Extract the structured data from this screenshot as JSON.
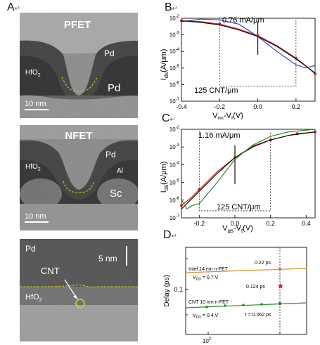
{
  "panels": {
    "a": {
      "label": "A",
      "ret": "↵"
    },
    "b": {
      "label": "B",
      "ret": "↵"
    },
    "c": {
      "label": "C",
      "ret": "↵"
    },
    "d": {
      "label": "D",
      "ret": "↵"
    }
  },
  "micrographs": {
    "pfet": {
      "title": "PFET",
      "pd_top": "Pd",
      "pd_bottom": "Pd",
      "hfo2": "HfO",
      "hfo2_sub": "2",
      "scale": "10 nm"
    },
    "nfet": {
      "title": "NFET",
      "pd": "Pd",
      "hfo2": "HfO",
      "hfo2_sub": "2",
      "al": "Al",
      "sc": "Sc",
      "scale": "10 nm"
    },
    "cnt": {
      "pd": "Pd",
      "cnt": "CNT",
      "hfo2": "HfO",
      "hfo2_sub": "2",
      "scale": "5 nm"
    }
  },
  "colors": {
    "red": "#c8201e",
    "blue": "#3040d0",
    "black": "#111111",
    "green": "#2a8a2a",
    "orange": "#e0902a",
    "star": "#e02020"
  },
  "chart_data": [
    {
      "type": "line",
      "panel": "B",
      "xlabel": "V",
      "xlabel_sub1": "gs",
      "xlabel_mid": "-V",
      "xlabel_sub2": "t",
      "xlabel_unit": "(V)",
      "ylabel": "I",
      "ylabel_sub": "ds",
      "ylabel_unit": "(A/μm)",
      "xlim": [
        -0.4,
        0.3
      ],
      "ylog": true,
      "ylim_exp": [
        -7,
        -2
      ],
      "xticks": [
        "-0.4",
        "-0.2",
        "0.0",
        "0.2"
      ],
      "yticks_exp": [
        "-7",
        "-6",
        "-5",
        "-4",
        "-3",
        "-2"
      ],
      "annotations": [
        "0.76 mA/μm",
        "125 CNT/μm"
      ],
      "series": [
        {
          "color": "red",
          "marker": true,
          "x": [
            -0.4,
            -0.3,
            -0.2,
            -0.1,
            0.0,
            0.1,
            0.2,
            0.25,
            0.3
          ],
          "logy": [
            -2.15,
            -2.2,
            -2.35,
            -2.65,
            -3.05,
            -3.65,
            -4.4,
            -4.85,
            -5.35
          ]
        },
        {
          "color": "blue",
          "marker": false,
          "x": [
            -0.4,
            -0.3,
            -0.2,
            -0.1,
            0.0,
            0.1,
            0.15,
            0.2,
            0.25,
            0.3
          ],
          "logy": [
            -2.2,
            -2.05,
            -2.1,
            -2.35,
            -3.1,
            -4.0,
            -4.4,
            -4.8,
            -5.0,
            -4.85
          ]
        },
        {
          "color": "black",
          "marker": false,
          "x": [
            -0.4,
            -0.3,
            -0.2,
            -0.1,
            0.0,
            0.1,
            0.2,
            0.3
          ],
          "logy": [
            -2.15,
            -2.25,
            -2.4,
            -2.7,
            -3.1,
            -3.7,
            -4.45,
            -5.3
          ]
        }
      ]
    },
    {
      "type": "line",
      "panel": "C",
      "xlabel": "V",
      "xlabel_sub1": "gs",
      "xlabel_mid": "-V",
      "xlabel_sub2": "t",
      "xlabel_unit": "(V)",
      "ylabel": "I",
      "ylabel_sub": "ds",
      "ylabel_unit": "(A/μm)",
      "xlim": [
        -0.3,
        0.45
      ],
      "ylog": true,
      "ylim_exp": [
        -7,
        -2
      ],
      "xticks": [
        "-0.2",
        "0.0",
        "0.2",
        "0.4"
      ],
      "yticks_exp": [
        "-7",
        "-6",
        "-5",
        "-4",
        "-3",
        "-2"
      ],
      "annotations": [
        "1.16 mA/μm",
        "125 CNT/μm"
      ],
      "series": [
        {
          "color": "red",
          "marker": true,
          "x": [
            -0.3,
            -0.25,
            -0.2,
            -0.1,
            0.0,
            0.1,
            0.2,
            0.3,
            0.35,
            0.45
          ],
          "logy": [
            -6.3,
            -5.9,
            -5.4,
            -4.4,
            -3.6,
            -2.95,
            -2.6,
            -2.35,
            -2.25,
            -2.15
          ]
        },
        {
          "color": "black",
          "marker": false,
          "x": [
            -0.3,
            -0.2,
            -0.1,
            0.0,
            0.1,
            0.2,
            0.3,
            0.45
          ],
          "logy": [
            -6.5,
            -5.5,
            -4.5,
            -3.6,
            -3.0,
            -2.6,
            -2.35,
            -2.15
          ]
        },
        {
          "color": "green",
          "marker": false,
          "x": [
            -0.3,
            -0.27,
            -0.24,
            -0.2,
            -0.1,
            0.0,
            0.1,
            0.2,
            0.3,
            0.45
          ],
          "logy": [
            -6.0,
            -6.5,
            -6.3,
            -6.2,
            -5.0,
            -3.7,
            -2.9,
            -2.4,
            -2.15,
            -2.0
          ]
        }
      ]
    },
    {
      "type": "scatter",
      "panel": "D",
      "ylabel": "Delay (ps)",
      "yticks": [
        "0.1"
      ],
      "xticks_exp": [
        "2"
      ],
      "annotations": {
        "intel_label": "Intel 14 nm n-FET",
        "intel_vdd": "V",
        "intel_vdd_sub": "DD",
        "intel_vdd_val": " = 0.7 V",
        "intel_val": "0.22 ps",
        "star_val": "0.124 ps",
        "cnt_label": "CNT 10 nm n-FET",
        "cnt_vdd": "V",
        "cnt_vdd_sub": "DD",
        "cnt_vdd_val": " = 0.4 V",
        "tau": "τ = 0.062 ps"
      }
    }
  ]
}
